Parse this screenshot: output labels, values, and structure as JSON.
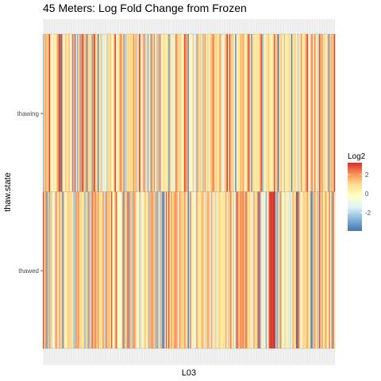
{
  "chart_data": {
    "type": "heatmap",
    "title": "45 Meters: Log Fold Change from Frozen",
    "xlabel": "L03",
    "ylabel": "thaw.state",
    "rows": [
      "thawing",
      "thawed"
    ],
    "columns_count": 240,
    "legend": {
      "title": "Log2",
      "ticks": [
        2,
        0,
        -2
      ],
      "range": [
        -4,
        3.5
      ],
      "colors": [
        "#4575b4",
        "#91bfdb",
        "#e0f3f8",
        "#ffffbf",
        "#fee090",
        "#fc8d59",
        "#d73027"
      ],
      "placement": "right"
    },
    "background": "grid-panel-grey"
  }
}
